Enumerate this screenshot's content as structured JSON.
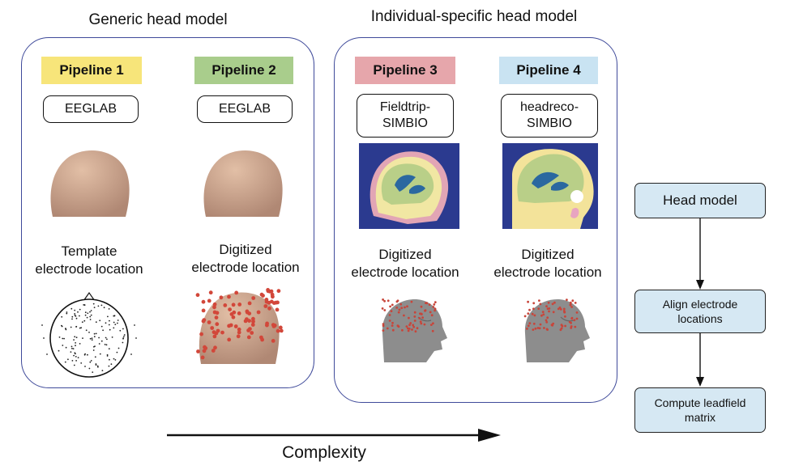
{
  "groups": {
    "generic": {
      "title": "Generic head model"
    },
    "individual": {
      "title": "Individual-specific head model"
    }
  },
  "pipelines": [
    {
      "label": "Pipeline 1",
      "color": "#f7e57a",
      "tool": "EEGLAB",
      "electrode": "Template\nelectrode location"
    },
    {
      "label": "Pipeline 2",
      "color": "#a9cd8c",
      "tool": "EEGLAB",
      "electrode": "Digitized\nelectrode location"
    },
    {
      "label": "Pipeline 3",
      "color": "#e6a6ab",
      "tool": "Fieldtrip-\nSIMBIO",
      "electrode": "Digitized\nelectrode location"
    },
    {
      "label": "Pipeline 4",
      "color": "#c9e3f2",
      "tool": "headreco-\nSIMBIO",
      "electrode": "Digitized\nelectrode location"
    }
  ],
  "axis": {
    "label": "Complexity"
  },
  "flow": {
    "steps": [
      "Head model",
      "Align electrode\nlocations",
      "Compute leadfield\nmatrix"
    ]
  },
  "icons": [
    "generic-head-icon",
    "mri-slice-icon",
    "electrode-cap-icon",
    "face-mesh-icon",
    "topo-map-icon"
  ]
}
